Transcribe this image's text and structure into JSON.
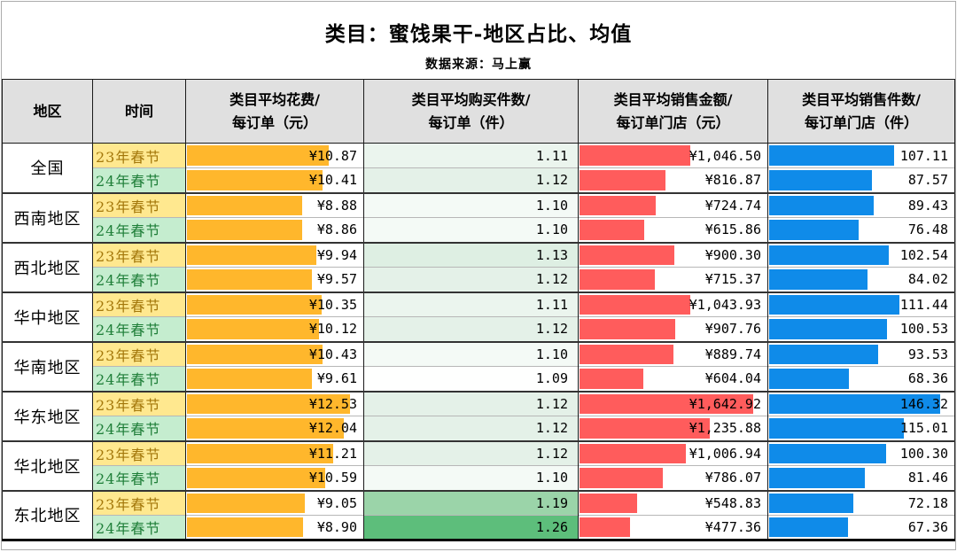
{
  "title": "类目：蜜饯果干-地区占比、均值",
  "subtitle": "数据来源：马上赢",
  "header_lines": [
    [
      "地区"
    ],
    [
      "时间"
    ],
    [
      "类目平均花费/",
      "每订单（元）"
    ],
    [
      "类目平均购买件数/",
      "每订单（件）"
    ],
    [
      "类目平均销售金额/",
      "每订单门店（元）"
    ],
    [
      "类目平均销售件数/",
      "每订单门店（件）"
    ]
  ],
  "colors": {
    "header_bg": "#e0e0e0",
    "period23_bg": "#ffe88f",
    "period23_text": "#a3770a",
    "period24_bg": "#c5edcf",
    "period24_text": "#1e7e38",
    "bar_spend": "#ffb72c",
    "bar_amount": "#ff5c5c",
    "bar_count": "#0f8be9"
  },
  "chart_data": {
    "type": "table",
    "title": "类目：蜜饯果干-地区占比、均值",
    "subtitle": "数据来源：马上赢",
    "columns": [
      "地区",
      "时间",
      "类目平均花费/每订单（元）",
      "类目平均购买件数/每订单（件）",
      "类目平均销售金额/每订单门店（元）",
      "类目平均销售件数/每订单门店（件）"
    ],
    "regions": [
      "全国",
      "西南地区",
      "西北地区",
      "华中地区",
      "华南地区",
      "华东地区",
      "华北地区",
      "东北地区"
    ],
    "periods": [
      "23年春节",
      "24年春节"
    ],
    "maxima": {
      "spend": 12.53,
      "qty": 1.26,
      "amount": 1642.92,
      "count": 146.32
    },
    "bar_fill_max_pct": 92,
    "rows": [
      {
        "region": "全国",
        "period": "23年春节",
        "period_type": "23",
        "spend": 10.87,
        "spend_label": "¥10.87",
        "qty": 1.11,
        "qty_label": "1.11",
        "qty_bg": "#ebf5ee",
        "amount": 1046.5,
        "amount_label": "¥1,046.50",
        "count": 107.11,
        "count_label": "107.11"
      },
      {
        "region": "全国",
        "period": "24年春节",
        "period_type": "24",
        "spend": 10.41,
        "spend_label": "¥10.41",
        "qty": 1.12,
        "qty_label": "1.12",
        "qty_bg": "#e4f1e8",
        "amount": 816.87,
        "amount_label": "¥816.87",
        "count": 87.57,
        "count_label": "87.57"
      },
      {
        "region": "西南地区",
        "period": "23年春节",
        "period_type": "23",
        "spend": 8.88,
        "spend_label": "¥8.88",
        "qty": 1.1,
        "qty_label": "1.10",
        "qty_bg": "#f4faf6",
        "amount": 724.74,
        "amount_label": "¥724.74",
        "count": 89.43,
        "count_label": "89.43"
      },
      {
        "region": "西南地区",
        "period": "24年春节",
        "period_type": "24",
        "spend": 8.86,
        "spend_label": "¥8.86",
        "qty": 1.1,
        "qty_label": "1.10",
        "qty_bg": "#f4faf6",
        "amount": 615.86,
        "amount_label": "¥615.86",
        "count": 76.48,
        "count_label": "76.48"
      },
      {
        "region": "西北地区",
        "period": "23年春节",
        "period_type": "23",
        "spend": 9.94,
        "spend_label": "¥9.94",
        "qty": 1.13,
        "qty_label": "1.13",
        "qty_bg": "#deefe3",
        "amount": 900.3,
        "amount_label": "¥900.30",
        "count": 102.54,
        "count_label": "102.54"
      },
      {
        "region": "西北地区",
        "period": "24年春节",
        "period_type": "24",
        "spend": 9.57,
        "spend_label": "¥9.57",
        "qty": 1.12,
        "qty_label": "1.12",
        "qty_bg": "#e4f1e8",
        "amount": 715.37,
        "amount_label": "¥715.37",
        "count": 84.02,
        "count_label": "84.02"
      },
      {
        "region": "华中地区",
        "period": "23年春节",
        "period_type": "23",
        "spend": 10.35,
        "spend_label": "¥10.35",
        "qty": 1.11,
        "qty_label": "1.11",
        "qty_bg": "#ebf5ee",
        "amount": 1043.93,
        "amount_label": "¥1,043.93",
        "count": 111.44,
        "count_label": "111.44"
      },
      {
        "region": "华中地区",
        "period": "24年春节",
        "period_type": "24",
        "spend": 10.12,
        "spend_label": "¥10.12",
        "qty": 1.12,
        "qty_label": "1.12",
        "qty_bg": "#e4f1e8",
        "amount": 907.76,
        "amount_label": "¥907.76",
        "count": 100.53,
        "count_label": "100.53"
      },
      {
        "region": "华南地区",
        "period": "23年春节",
        "period_type": "23",
        "spend": 10.43,
        "spend_label": "¥10.43",
        "qty": 1.1,
        "qty_label": "1.10",
        "qty_bg": "#f4faf6",
        "amount": 889.74,
        "amount_label": "¥889.74",
        "count": 93.53,
        "count_label": "93.53"
      },
      {
        "region": "华南地区",
        "period": "24年春节",
        "period_type": "24",
        "spend": 9.61,
        "spend_label": "¥9.61",
        "qty": 1.09,
        "qty_label": "1.09",
        "qty_bg": "#feFFFe",
        "amount": 604.04,
        "amount_label": "¥604.04",
        "count": 68.36,
        "count_label": "68.36"
      },
      {
        "region": "华东地区",
        "period": "23年春节",
        "period_type": "23",
        "spend": 12.53,
        "spend_label": "¥12.53",
        "qty": 1.12,
        "qty_label": "1.12",
        "qty_bg": "#e4f1e8",
        "amount": 1642.92,
        "amount_label": "¥1,642.92",
        "count": 146.32,
        "count_label": "146.32"
      },
      {
        "region": "华东地区",
        "period": "24年春节",
        "period_type": "24",
        "spend": 12.04,
        "spend_label": "¥12.04",
        "qty": 1.12,
        "qty_label": "1.12",
        "qty_bg": "#e4f1e8",
        "amount": 1235.88,
        "amount_label": "¥1,235.88",
        "count": 115.01,
        "count_label": "115.01"
      },
      {
        "region": "华北地区",
        "period": "23年春节",
        "period_type": "23",
        "spend": 11.21,
        "spend_label": "¥11.21",
        "qty": 1.12,
        "qty_label": "1.12",
        "qty_bg": "#e4f1e8",
        "amount": 1006.94,
        "amount_label": "¥1,006.94",
        "count": 100.3,
        "count_label": "100.30"
      },
      {
        "region": "华北地区",
        "period": "24年春节",
        "period_type": "24",
        "spend": 10.59,
        "spend_label": "¥10.59",
        "qty": 1.1,
        "qty_label": "1.10",
        "qty_bg": "#f4faf6",
        "amount": 786.07,
        "amount_label": "¥786.07",
        "count": 81.46,
        "count_label": "81.46"
      },
      {
        "region": "东北地区",
        "period": "23年春节",
        "period_type": "23",
        "spend": 9.05,
        "spend_label": "¥9.05",
        "qty": 1.19,
        "qty_label": "1.19",
        "qty_bg": "#9bd4a9",
        "amount": 548.83,
        "amount_label": "¥548.83",
        "count": 72.18,
        "count_label": "72.18"
      },
      {
        "region": "东北地区",
        "period": "24年春节",
        "period_type": "24",
        "spend": 8.9,
        "spend_label": "¥8.90",
        "qty": 1.26,
        "qty_label": "1.26",
        "qty_bg": "#5dbe7b",
        "amount": 477.36,
        "amount_label": "¥477.36",
        "count": 67.36,
        "count_label": "67.36"
      }
    ]
  }
}
